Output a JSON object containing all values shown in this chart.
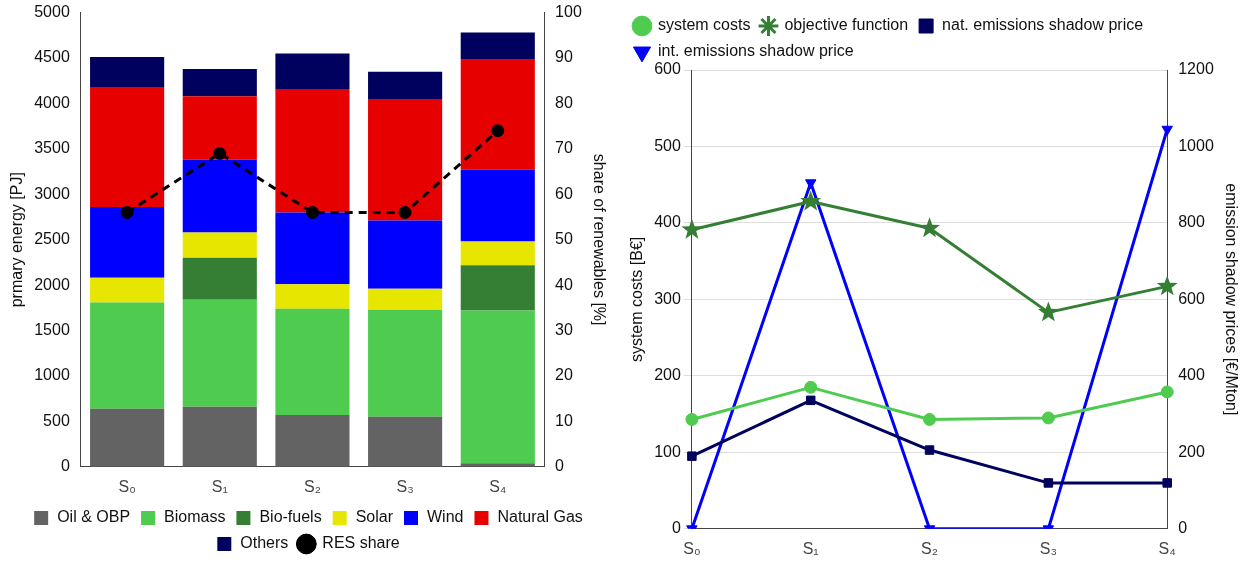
{
  "chart_data": [
    {
      "type": "bar",
      "stacked": true,
      "categories": [
        "S₀",
        "S₁",
        "S₂",
        "S₃",
        "S₄"
      ],
      "ylabel": "prmary energy [PJ]",
      "y2label": "share of renewables [%]",
      "ylim": [
        0,
        5000
      ],
      "yticks": [
        0,
        500,
        1000,
        1500,
        2000,
        2500,
        3000,
        3500,
        4000,
        4500,
        5000
      ],
      "y2lim": [
        0,
        100
      ],
      "y2ticks": [
        0,
        10,
        20,
        30,
        40,
        50,
        60,
        70,
        80,
        90,
        100
      ],
      "grid": false,
      "legend": "bottom",
      "series": [
        {
          "name": "Oil & OBP",
          "color": "#636363",
          "values": [
            640,
            660,
            570,
            550,
            40
          ]
        },
        {
          "name": "Biomass",
          "color": "#4fcc4f",
          "values": [
            1170,
            1180,
            1170,
            1180,
            1680
          ]
        },
        {
          "name": "Bio-fuels",
          "color": "#347f34",
          "values": [
            0,
            460,
            0,
            0,
            500
          ]
        },
        {
          "name": "Solar",
          "color": "#e6e600",
          "values": [
            270,
            280,
            270,
            230,
            260
          ]
        },
        {
          "name": "Wind",
          "color": "#0000ff",
          "values": [
            780,
            800,
            790,
            750,
            790
          ]
        },
        {
          "name": "Natural Gas",
          "color": "#e60000",
          "values": [
            1320,
            700,
            1360,
            1330,
            1210
          ]
        },
        {
          "name": "Others",
          "color": "#00005e",
          "values": [
            330,
            300,
            390,
            310,
            300
          ]
        },
        {
          "name": "RES share",
          "type": "line",
          "axis": "y2",
          "color": "#000000",
          "marker": "circle",
          "line_style": "dashed",
          "values": [
            56,
            69,
            56,
            56,
            74
          ]
        }
      ]
    },
    {
      "type": "line",
      "categories": [
        "S₀",
        "S₁",
        "S₂",
        "S₃",
        "S₄"
      ],
      "ylabel": "system costs [B€]",
      "y2label": "emission shadow prices [€/Mton]",
      "ylim": [
        0,
        600
      ],
      "yticks": [
        0,
        100,
        200,
        300,
        400,
        500,
        600
      ],
      "y2lim": [
        0,
        1200
      ],
      "y2ticks": [
        0,
        200,
        400,
        600,
        800,
        1000,
        1200
      ],
      "grid": "y",
      "legend": "top left",
      "series": [
        {
          "name": "system costs",
          "color": "#4fcc4f",
          "marker": "circle",
          "values": [
            143,
            185,
            143,
            145,
            179
          ]
        },
        {
          "name": "objective function",
          "color": "#347f34",
          "marker": "star",
          "values": [
            391,
            428,
            393,
            283,
            317
          ]
        },
        {
          "name": "nat. emissions shadow price",
          "color": "#00005e",
          "marker": "square",
          "axis": "y2",
          "values": [
            190,
            336,
            206,
            120,
            120
          ]
        },
        {
          "name": "int. emissions shadow price",
          "color": "#0000ff",
          "marker": "triangle",
          "axis": "y2",
          "values": [
            0,
            905,
            0,
            0,
            1045
          ]
        }
      ]
    }
  ]
}
